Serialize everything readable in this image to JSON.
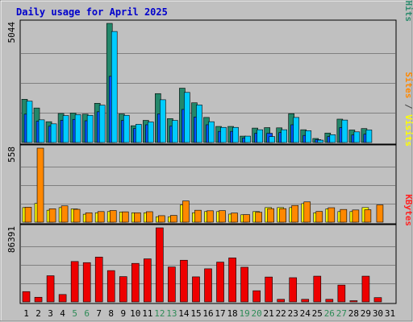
{
  "chart_data": {
    "type": "bar",
    "title": "Daily usage for April 2025",
    "x": [
      "1",
      "2",
      "3",
      "4",
      "5",
      "6",
      "7",
      "8",
      "9",
      "10",
      "11",
      "12",
      "13",
      "14",
      "15",
      "16",
      "17",
      "18",
      "19",
      "20",
      "21",
      "22",
      "23",
      "24",
      "25",
      "26",
      "27",
      "28",
      "29",
      "30",
      "31"
    ],
    "weekend_days": [
      "5",
      "6",
      "12",
      "13",
      "19",
      "20",
      "26",
      "27"
    ],
    "panels": [
      {
        "name": "top",
        "max_label": "5044",
        "ylim": [
          0,
          5044
        ],
        "legend": [
          {
            "text": "Pages",
            "color": "#00ccff"
          },
          {
            "text": " / ",
            "color": "#444444"
          },
          {
            "text": "Files",
            "color": "#0055ff"
          },
          {
            "text": " / ",
            "color": "#444444"
          },
          {
            "text": "Hits",
            "color": "#2e8b6e"
          }
        ],
        "series": [
          {
            "name": "Hits",
            "color": "#23876a",
            "values": [
              1830,
              1460,
              880,
              1230,
              1250,
              1200,
              1660,
              5044,
              1210,
              710,
              937,
              2070,
              1010,
              2300,
              1680,
              1061,
              680,
              680,
              270,
              610,
              630,
              620,
              1220,
              540,
              170,
              400,
              989,
              530,
              590,
              0,
              0
            ]
          },
          {
            "name": "Files",
            "color": "#0055ff",
            "values": [
              1200,
              900,
              690,
              940,
              980,
              920,
              1300,
              2800,
              930,
              590,
              750,
              1210,
              690,
              1400,
              1080,
              750,
              470,
              470,
              190,
              390,
              390,
              420,
              750,
              300,
              120,
              250,
              630,
              320,
              350,
              0,
              0
            ]
          },
          {
            "name": "Pages",
            "color": "#00ccff",
            "values": [
              1750,
              960,
              790,
              1140,
              1180,
              1150,
              1580,
              4700,
              1150,
              770,
              869,
              1810,
              935,
              2120,
              1590,
              880,
              640,
              640,
              270,
              540,
              250,
              540,
              1060,
              500,
              100,
              330,
              950,
              450,
              530,
              0,
              0
            ]
          }
        ]
      },
      {
        "name": "middle",
        "max_label": "558",
        "ylim": [
          0,
          558
        ],
        "legend": [
          {
            "text": "Sites",
            "color": "#ff8800"
          },
          {
            "text": " / ",
            "color": "#444444"
          },
          {
            "text": "Visits",
            "color": "#ffff00"
          }
        ],
        "series": [
          {
            "name": "Visits",
            "color": "#ffff00",
            "values": [
              110,
              141,
              90,
              110,
              100,
              60,
              71,
              80,
              77,
              71,
              71,
              41,
              41,
              130,
              71,
              80,
              80,
              61,
              56,
              80,
              110,
              110,
              110,
              140,
              71,
              100,
              80,
              80,
              110,
              0,
              0
            ]
          },
          {
            "name": "Sites",
            "color": "#ff8800",
            "values": [
              113,
              558,
              101,
              123,
              97,
              71,
              80,
              88,
              78,
              71,
              79,
              49,
              51,
              160,
              90,
              86,
              87,
              69,
              57,
              75,
              102,
              102,
              126,
              153,
              81,
              109,
              96,
              92,
              94,
              130,
              0
            ]
          }
        ]
      },
      {
        "name": "bottom",
        "max_label": "86391",
        "ylim": [
          0,
          86391
        ],
        "legend": [
          {
            "text": "KBytes",
            "color": "#ff2222"
          }
        ],
        "series": [
          {
            "name": "KBytes",
            "color": "#ee0000",
            "values": [
              12000,
              5400,
              30500,
              8600,
              47100,
              45800,
              52300,
              36500,
              29500,
              44900,
              50200,
              86391,
              40700,
              48600,
              29200,
              38600,
              46400,
              51300,
              40400,
              13000,
              29000,
              3000,
              28200,
              3000,
              30000,
              3000,
              19600,
              1400,
              30000,
              5000,
              0
            ]
          }
        ]
      }
    ]
  }
}
